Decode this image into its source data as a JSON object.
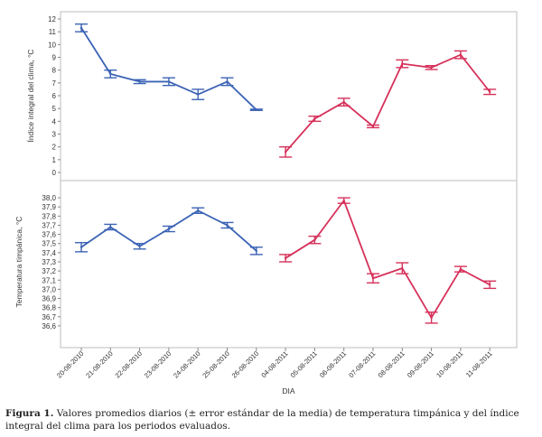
{
  "chart_data": {
    "type": "line",
    "xlabel": "DIA",
    "categories": [
      "20-08-2010",
      "21-08-2010",
      "22-08-2010",
      "23-08-2010",
      "24-08-2010",
      "25-08-2010",
      "26-08-2010",
      "04-08-2011",
      "05-08-2011",
      "06-08-2011",
      "07-08-2011",
      "08-08-2011",
      "09-08-2011",
      "10-08-2011",
      "11-08-2011"
    ],
    "period_colors": [
      "#3b63b5",
      "#d6315a"
    ],
    "period_split_index": 7,
    "panels": [
      {
        "ylabel": "Índice integral del clima, °C",
        "ylim": [
          0,
          12
        ],
        "ytick_values": [
          0,
          1,
          2,
          3,
          4,
          5,
          6,
          7,
          8,
          9,
          10,
          11,
          12
        ],
        "ytick_labels": [
          "0",
          "1",
          "2",
          "3",
          "4",
          "5",
          "6",
          "7",
          "8",
          "9",
          "10",
          "11",
          "12"
        ],
        "values": [
          11.3,
          7.7,
          7.1,
          7.1,
          6.1,
          7.1,
          4.9,
          1.6,
          4.2,
          5.5,
          3.6,
          8.5,
          8.2,
          9.2,
          6.3
        ],
        "errors": [
          0.3,
          0.3,
          0.15,
          0.3,
          0.4,
          0.3,
          0.05,
          0.4,
          0.2,
          0.3,
          0.1,
          0.3,
          0.15,
          0.3,
          0.2
        ]
      },
      {
        "ylabel": "Temperatura timpánica, °C",
        "ylim": [
          36.55,
          38.05
        ],
        "ytick_values": [
          36.6,
          36.7,
          36.8,
          36.9,
          37.0,
          37.1,
          37.2,
          37.3,
          37.4,
          37.5,
          37.6,
          37.7,
          37.8,
          37.9,
          38.0
        ],
        "ytick_labels": [
          "36,6",
          "36,7",
          "36,8",
          "36,9",
          "37,0",
          "37,1",
          "37,2",
          "37,3",
          "37,4",
          "37,5",
          "37,6",
          "37,7",
          "37,8",
          "37,9",
          "38,0"
        ],
        "values": [
          37.46,
          37.68,
          37.47,
          37.66,
          37.86,
          37.7,
          37.42,
          37.34,
          37.54,
          37.97,
          37.12,
          37.23,
          36.69,
          37.22,
          37.05
        ],
        "errors": [
          0.05,
          0.03,
          0.03,
          0.03,
          0.03,
          0.03,
          0.04,
          0.04,
          0.04,
          0.03,
          0.05,
          0.06,
          0.06,
          0.03,
          0.04
        ]
      }
    ]
  },
  "caption": {
    "label": "Figura 1.",
    "text": "Valores promedios diarios (± error estándar de la media) de temperatura timpánica y del índice integral del clima para los periodos evaluados."
  }
}
